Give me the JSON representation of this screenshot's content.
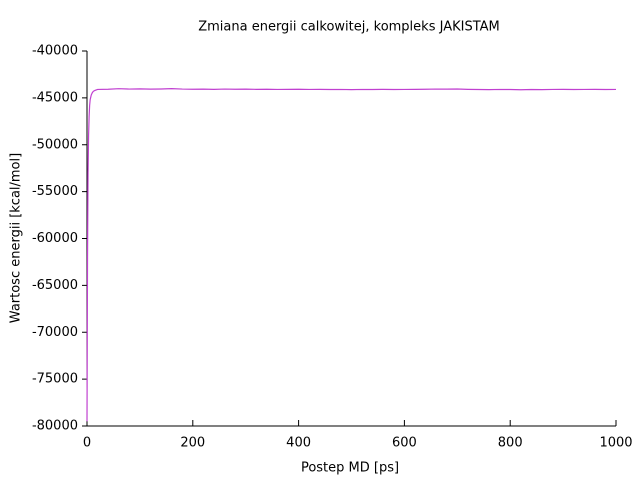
{
  "chart_data": {
    "type": "line",
    "title": "Zmiana energii calkowitej, kompleks JAKISTAM",
    "x_label": "Postep MD [ps]",
    "y_label": "Wartosc energii [kcal/mol]",
    "x": [
      0,
      1,
      2,
      3,
      4,
      5,
      6,
      8,
      10,
      12,
      15,
      20,
      40,
      60,
      80,
      100,
      120,
      140,
      160,
      180,
      200,
      220,
      240,
      260,
      280,
      300,
      320,
      340,
      360,
      380,
      400,
      420,
      440,
      460,
      480,
      500,
      520,
      540,
      560,
      580,
      600,
      620,
      640,
      660,
      680,
      700,
      720,
      740,
      760,
      780,
      800,
      820,
      840,
      860,
      880,
      900,
      920,
      940,
      960,
      980,
      1000
    ],
    "series": [
      {
        "color": "#c040d0",
        "values": [
          -79500,
          -62000,
          -53000,
          -49000,
          -47000,
          -45800,
          -45200,
          -44700,
          -44450,
          -44300,
          -44200,
          -44100,
          -44080,
          -44020,
          -44060,
          -44040,
          -44070,
          -44050,
          -44010,
          -44060,
          -44080,
          -44070,
          -44090,
          -44060,
          -44080,
          -44070,
          -44090,
          -44080,
          -44100,
          -44090,
          -44080,
          -44100,
          -44090,
          -44110,
          -44100,
          -44120,
          -44100,
          -44110,
          -44090,
          -44110,
          -44100,
          -44090,
          -44080,
          -44060,
          -44070,
          -44050,
          -44090,
          -44110,
          -44120,
          -44100,
          -44110,
          -44130,
          -44110,
          -44120,
          -44100,
          -44090,
          -44110,
          -44100,
          -44090,
          -44110,
          -44100
        ]
      }
    ],
    "xlim": [
      0,
      1000
    ],
    "xticks": [
      0,
      200,
      400,
      600,
      800,
      1000
    ],
    "ylim": [
      -80000,
      -40000
    ],
    "yticks": [
      -80000,
      -75000,
      -70000,
      -65000,
      -60000,
      -55000,
      -50000,
      -45000,
      -40000
    ]
  }
}
